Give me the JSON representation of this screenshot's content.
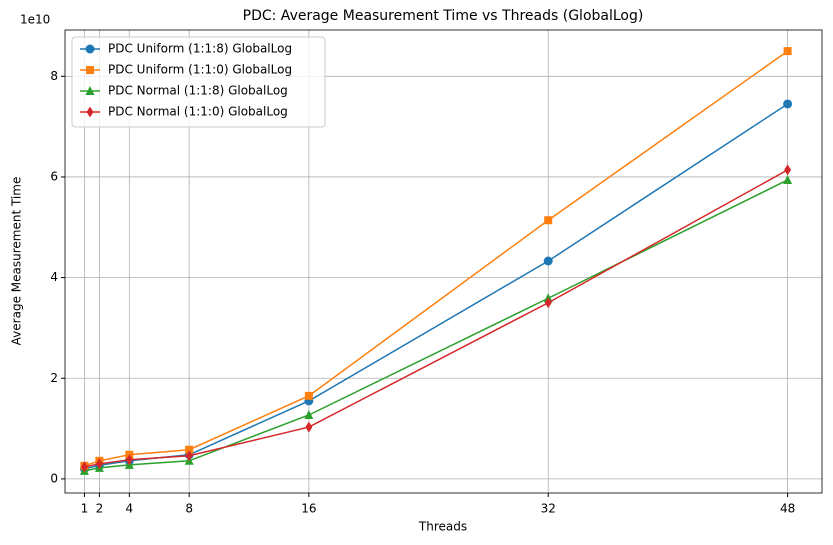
{
  "chart_data": {
    "type": "line",
    "title": "PDC: Average Measurement Time vs Threads (GlobalLog)",
    "x_label": "Threads",
    "y_label": "Average Measurement Time",
    "y_offset_label": "1e10",
    "x": [
      1,
      2,
      4,
      8,
      16,
      32,
      48
    ],
    "series": [
      {
        "name": "PDC Uniform (1:1:8) GlobalLog",
        "color": "#1f77b4",
        "marker": "circle",
        "values": [
          0.2,
          0.27,
          0.36,
          0.48,
          1.55,
          4.33,
          7.45
        ]
      },
      {
        "name": "PDC Uniform (1:1:0) GlobalLog",
        "color": "#ff7f0e",
        "marker": "square",
        "values": [
          0.26,
          0.36,
          0.48,
          0.58,
          1.65,
          5.14,
          8.5
        ]
      },
      {
        "name": "PDC Normal (1:1:8) GlobalLog",
        "color": "#2ca02c",
        "marker": "triangle",
        "values": [
          0.16,
          0.22,
          0.28,
          0.36,
          1.27,
          3.59,
          5.94
        ]
      },
      {
        "name": "PDC Normal (1:1:0) GlobalLog",
        "color": "#d62728",
        "marker": "diamond",
        "values": [
          0.24,
          0.3,
          0.38,
          0.46,
          1.03,
          3.5,
          6.14
        ]
      }
    ],
    "xlim": [
      -0.3,
      50.3
    ],
    "xticks": [
      1,
      2,
      4,
      8,
      16,
      32,
      48
    ],
    "ylim": [
      -0.28,
      8.92
    ],
    "yticks": [
      0,
      2,
      4,
      6,
      8
    ],
    "grid": true,
    "legend": "upper-left"
  }
}
